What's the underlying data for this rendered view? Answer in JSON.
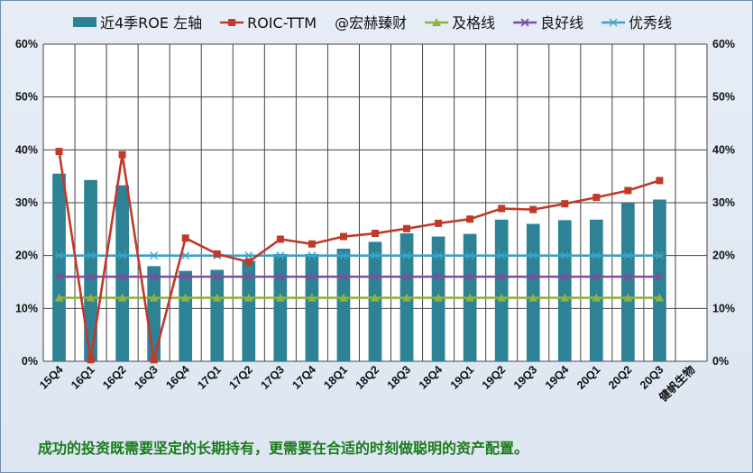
{
  "chart_data": {
    "type": "bar",
    "categories": [
      "15Q4",
      "16Q1",
      "16Q2",
      "16Q3",
      "16Q4",
      "17Q1",
      "17Q2",
      "17Q3",
      "17Q4",
      "18Q1",
      "18Q2",
      "18Q3",
      "18Q4",
      "19Q1",
      "19Q2",
      "19Q3",
      "19Q4",
      "20Q1",
      "20Q2",
      "20Q3",
      "健帆生物"
    ],
    "series": [
      {
        "name": "近4季ROE 左轴",
        "type": "bar",
        "color": "#2e8296",
        "values": [
          35.5,
          34.3,
          33.3,
          18.0,
          17.1,
          17.3,
          19.0,
          20.3,
          20.3,
          21.3,
          22.6,
          24.2,
          23.6,
          24.1,
          26.8,
          26.0,
          26.7,
          26.8,
          29.9,
          30.6,
          null
        ]
      },
      {
        "name": "ROIC-TTM",
        "type": "line",
        "color": "#c0392b",
        "marker": "square",
        "values": [
          39.7,
          0.3,
          39.1,
          0.3,
          23.3,
          20.3,
          18.8,
          23.1,
          22.2,
          23.6,
          24.2,
          25.1,
          26.1,
          26.9,
          28.9,
          28.7,
          29.8,
          31.0,
          32.3,
          34.2,
          null
        ]
      },
      {
        "name": "及格线",
        "type": "line",
        "color": "#8db341",
        "marker": "triangle",
        "values": [
          12,
          12,
          12,
          12,
          12,
          12,
          12,
          12,
          12,
          12,
          12,
          12,
          12,
          12,
          12,
          12,
          12,
          12,
          12,
          12,
          null
        ]
      },
      {
        "name": "良好线",
        "type": "line",
        "color": "#7b4f9d",
        "marker": "x",
        "values": [
          16,
          16,
          16,
          16,
          16,
          16,
          16,
          16,
          16,
          16,
          16,
          16,
          16,
          16,
          16,
          16,
          16,
          16,
          16,
          16,
          null
        ]
      },
      {
        "name": "优秀线",
        "type": "line",
        "color": "#3ba3c7",
        "marker": "star",
        "values": [
          20,
          20,
          20,
          20,
          20,
          20,
          20,
          20,
          20,
          20,
          20,
          20,
          20,
          20,
          20,
          20,
          20,
          20,
          20,
          20,
          null
        ]
      }
    ],
    "watermark": "@宏赫臻财",
    "y_ticks": [
      "0%",
      "10%",
      "20%",
      "30%",
      "40%",
      "50%",
      "60%"
    ],
    "ylim": [
      0,
      60
    ],
    "grid": true,
    "legend_position": "top"
  },
  "footnote": "成功的投资既需要坚定的长期持有，更需要在合适的时刻做聪明的资产配置。"
}
